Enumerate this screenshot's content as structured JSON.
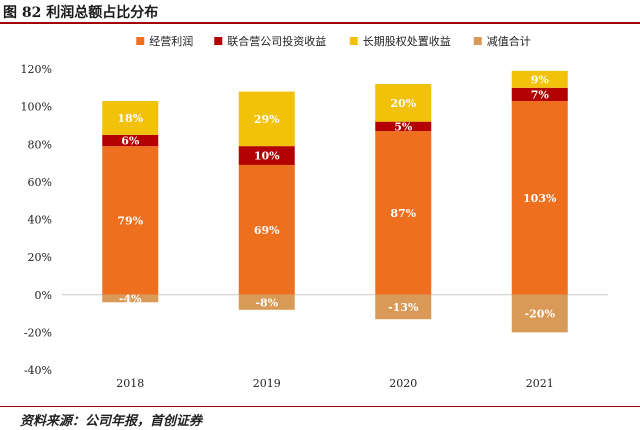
{
  "figure": {
    "title": "图 82 利润总额占比分布",
    "source": "资料来源：公司年报，首创证券"
  },
  "chart_data": {
    "type": "bar",
    "stacked": true,
    "categories": [
      "2018",
      "2019",
      "2020",
      "2021"
    ],
    "series": [
      {
        "name": "经营利润",
        "values": [
          79,
          69,
          87,
          103
        ],
        "color": "#ee6f1e"
      },
      {
        "name": "联合营公司投资收益",
        "values": [
          6,
          10,
          5,
          7
        ],
        "color": "#b30000"
      },
      {
        "name": "长期股权处置收益",
        "values": [
          18,
          29,
          20,
          9
        ],
        "color": "#f2c10a"
      },
      {
        "name": "减值合计",
        "values": [
          -4,
          -8,
          -13,
          -20
        ],
        "color": "#d99a57"
      }
    ],
    "data_labels": [
      [
        "79%",
        "69%",
        "87%",
        "103%"
      ],
      [
        "6%",
        "10%",
        "5%",
        "7%"
      ],
      [
        "18%",
        "29%",
        "20%",
        "9%"
      ],
      [
        "-4%",
        "-8%",
        "-13%",
        "-20%"
      ]
    ],
    "ylim": [
      -40,
      120
    ],
    "yticks": [
      -40,
      -20,
      0,
      20,
      40,
      60,
      80,
      100,
      120
    ],
    "ytick_labels": [
      "-40%",
      "-20%",
      "0%",
      "20%",
      "40%",
      "60%",
      "80%",
      "100%",
      "120%"
    ],
    "legend_position": "top",
    "grid": false
  }
}
